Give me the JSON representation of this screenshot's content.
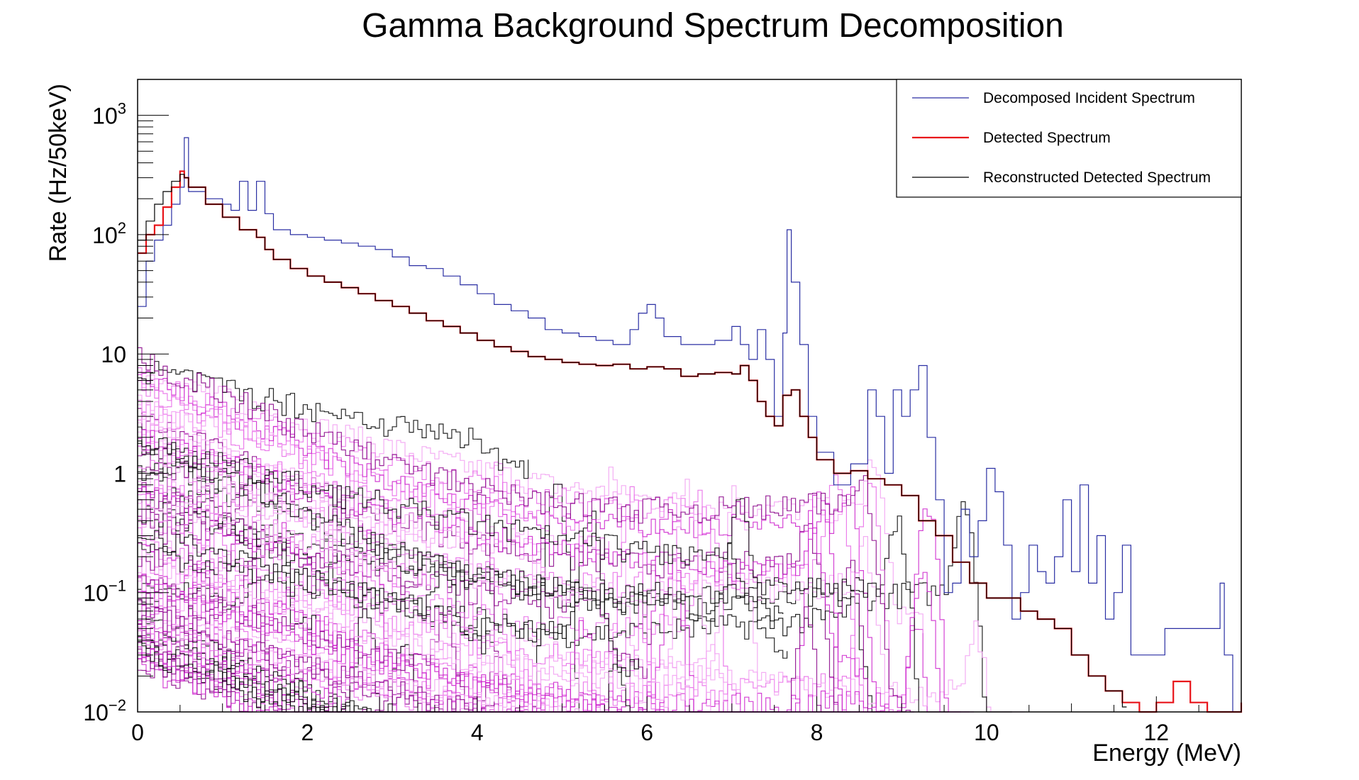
{
  "chart_data": {
    "type": "line",
    "title": "Gamma Background Spectrum Decomposition",
    "xlabel": "Energy (MeV)",
    "ylabel": "Rate (Hz/50keV)",
    "xlim": [
      0,
      13
    ],
    "ylim": [
      0.01,
      2000
    ],
    "yscale": "log",
    "grid": false,
    "legend_position": "top-right",
    "x_ticks": [
      {
        "value": 0,
        "label": "0"
      },
      {
        "value": 2,
        "label": "2"
      },
      {
        "value": 4,
        "label": "4"
      },
      {
        "value": 6,
        "label": "6"
      },
      {
        "value": 8,
        "label": "8"
      },
      {
        "value": 10,
        "label": "10"
      },
      {
        "value": 12,
        "label": "12"
      }
    ],
    "y_ticks": [
      {
        "value": 0.01,
        "base": "10",
        "exp": "−2",
        "label": ""
      },
      {
        "value": 0.1,
        "base": "10",
        "exp": "−1",
        "label": ""
      },
      {
        "value": 1,
        "base": "",
        "exp": "",
        "label": "1"
      },
      {
        "value": 10,
        "base": "",
        "exp": "",
        "label": "10"
      },
      {
        "value": 100,
        "base": "10",
        "exp": "2",
        "label": ""
      },
      {
        "value": 1000,
        "base": "10",
        "exp": "3",
        "label": ""
      }
    ],
    "series": [
      {
        "name": "Decomposed Incident Spectrum",
        "color": "#2a2fa3",
        "points": [
          [
            0.0,
            25
          ],
          [
            0.1,
            60
          ],
          [
            0.2,
            90
          ],
          [
            0.3,
            120
          ],
          [
            0.4,
            180
          ],
          [
            0.5,
            250
          ],
          [
            0.55,
            650
          ],
          [
            0.6,
            230
          ],
          [
            0.8,
            200
          ],
          [
            1.0,
            180
          ],
          [
            1.1,
            160
          ],
          [
            1.2,
            280
          ],
          [
            1.3,
            160
          ],
          [
            1.4,
            280
          ],
          [
            1.5,
            150
          ],
          [
            1.6,
            110
          ],
          [
            1.8,
            100
          ],
          [
            2.0,
            95
          ],
          [
            2.2,
            90
          ],
          [
            2.4,
            85
          ],
          [
            2.6,
            80
          ],
          [
            2.8,
            75
          ],
          [
            3.0,
            65
          ],
          [
            3.2,
            55
          ],
          [
            3.4,
            52
          ],
          [
            3.6,
            45
          ],
          [
            3.8,
            38
          ],
          [
            4.0,
            32
          ],
          [
            4.2,
            26
          ],
          [
            4.4,
            23
          ],
          [
            4.6,
            20
          ],
          [
            4.8,
            16
          ],
          [
            5.0,
            15
          ],
          [
            5.2,
            14
          ],
          [
            5.4,
            13
          ],
          [
            5.6,
            12
          ],
          [
            5.8,
            16
          ],
          [
            5.9,
            22
          ],
          [
            6.0,
            26
          ],
          [
            6.1,
            20
          ],
          [
            6.2,
            14
          ],
          [
            6.4,
            12
          ],
          [
            6.6,
            12
          ],
          [
            6.8,
            13
          ],
          [
            7.0,
            17
          ],
          [
            7.1,
            12
          ],
          [
            7.2,
            9
          ],
          [
            7.3,
            16
          ],
          [
            7.4,
            9
          ],
          [
            7.5,
            3
          ],
          [
            7.6,
            15
          ],
          [
            7.65,
            110
          ],
          [
            7.7,
            40
          ],
          [
            7.8,
            12
          ],
          [
            7.9,
            3
          ],
          [
            8.0,
            1.5
          ],
          [
            8.2,
            0.8
          ],
          [
            8.4,
            1.2
          ],
          [
            8.6,
            5
          ],
          [
            8.7,
            3
          ],
          [
            8.8,
            1
          ],
          [
            8.9,
            5
          ],
          [
            9.0,
            3
          ],
          [
            9.1,
            5
          ],
          [
            9.2,
            8
          ],
          [
            9.3,
            2
          ],
          [
            9.4,
            0.6
          ],
          [
            9.5,
            0.1
          ],
          [
            9.6,
            0.12
          ],
          [
            9.7,
            0.5
          ],
          [
            9.8,
            0.2
          ],
          [
            9.9,
            0.4
          ],
          [
            10.0,
            1.1
          ],
          [
            10.1,
            0.7
          ],
          [
            10.2,
            0.25
          ],
          [
            10.3,
            0.06
          ],
          [
            10.4,
            0.1
          ],
          [
            10.5,
            0.25
          ],
          [
            10.6,
            0.15
          ],
          [
            10.7,
            0.12
          ],
          [
            10.8,
            0.2
          ],
          [
            10.9,
            0.6
          ],
          [
            11.0,
            0.15
          ],
          [
            11.1,
            0.8
          ],
          [
            11.2,
            0.12
          ],
          [
            11.3,
            0.3
          ],
          [
            11.4,
            0.06
          ],
          [
            11.5,
            0.1
          ],
          [
            11.6,
            0.25
          ],
          [
            11.7,
            0.03
          ],
          [
            12.1,
            0.05
          ],
          [
            12.4,
            0.05
          ],
          [
            12.6,
            0.05
          ],
          [
            12.75,
            0.12
          ],
          [
            12.8,
            0.03
          ],
          [
            12.9,
            0.01
          ]
        ]
      },
      {
        "name": "Detected Spectrum",
        "color": "#e8141a",
        "points": [
          [
            0.0,
            70
          ],
          [
            0.1,
            100
          ],
          [
            0.2,
            120
          ],
          [
            0.3,
            170
          ],
          [
            0.4,
            250
          ],
          [
            0.5,
            340
          ],
          [
            0.55,
            300
          ],
          [
            0.6,
            250
          ],
          [
            0.8,
            180
          ],
          [
            1.0,
            140
          ],
          [
            1.2,
            110
          ],
          [
            1.4,
            95
          ],
          [
            1.5,
            75
          ],
          [
            1.6,
            62
          ],
          [
            1.8,
            52
          ],
          [
            2.0,
            45
          ],
          [
            2.2,
            40
          ],
          [
            2.4,
            36
          ],
          [
            2.6,
            32
          ],
          [
            2.8,
            28
          ],
          [
            3.0,
            25
          ],
          [
            3.2,
            22
          ],
          [
            3.4,
            19
          ],
          [
            3.6,
            17
          ],
          [
            3.8,
            15
          ],
          [
            4.0,
            13
          ],
          [
            4.2,
            11.5
          ],
          [
            4.4,
            10.5
          ],
          [
            4.6,
            9.5
          ],
          [
            4.8,
            9
          ],
          [
            5.0,
            8.5
          ],
          [
            5.2,
            8.2
          ],
          [
            5.4,
            8.0
          ],
          [
            5.6,
            8.2
          ],
          [
            5.8,
            7.5
          ],
          [
            6.0,
            7.8
          ],
          [
            6.2,
            7.5
          ],
          [
            6.4,
            6.5
          ],
          [
            6.6,
            6.8
          ],
          [
            6.8,
            7.0
          ],
          [
            7.0,
            6.8
          ],
          [
            7.1,
            8
          ],
          [
            7.2,
            6
          ],
          [
            7.3,
            4
          ],
          [
            7.4,
            3
          ],
          [
            7.5,
            2.5
          ],
          [
            7.6,
            4.5
          ],
          [
            7.7,
            5
          ],
          [
            7.8,
            3
          ],
          [
            7.9,
            2
          ],
          [
            8.0,
            1.3
          ],
          [
            8.2,
            1.0
          ],
          [
            8.4,
            1.05
          ],
          [
            8.6,
            0.9
          ],
          [
            8.8,
            0.8
          ],
          [
            9.0,
            0.65
          ],
          [
            9.2,
            0.4
          ],
          [
            9.4,
            0.3
          ],
          [
            9.6,
            0.18
          ],
          [
            9.8,
            0.12
          ],
          [
            10.0,
            0.09
          ],
          [
            10.2,
            0.09
          ],
          [
            10.4,
            0.07
          ],
          [
            10.6,
            0.06
          ],
          [
            10.8,
            0.05
          ],
          [
            11.0,
            0.03
          ],
          [
            11.2,
            0.02
          ],
          [
            11.4,
            0.015
          ],
          [
            11.6,
            0.012
          ],
          [
            11.8,
            0.01
          ],
          [
            12.0,
            0.012
          ],
          [
            12.2,
            0.018
          ],
          [
            12.4,
            0.012
          ],
          [
            12.6,
            0.01
          ],
          [
            12.8,
            0.01
          ],
          [
            13.0,
            0.012
          ]
        ]
      },
      {
        "name": "Reconstructed Detected Spectrum",
        "color": "#000000",
        "points": [
          [
            0.0,
            90
          ],
          [
            0.1,
            130
          ],
          [
            0.2,
            180
          ],
          [
            0.3,
            230
          ],
          [
            0.4,
            280
          ],
          [
            0.5,
            320
          ],
          [
            0.55,
            300
          ],
          [
            0.6,
            250
          ],
          [
            0.8,
            180
          ],
          [
            1.0,
            140
          ],
          [
            1.2,
            110
          ],
          [
            1.4,
            95
          ],
          [
            1.5,
            75
          ],
          [
            1.6,
            62
          ],
          [
            1.8,
            52
          ],
          [
            2.0,
            45
          ],
          [
            2.2,
            40
          ],
          [
            2.4,
            36
          ],
          [
            2.6,
            32
          ],
          [
            2.8,
            28
          ],
          [
            3.0,
            25
          ],
          [
            3.2,
            22
          ],
          [
            3.4,
            19
          ],
          [
            3.6,
            17
          ],
          [
            3.8,
            15
          ],
          [
            4.0,
            13
          ],
          [
            4.2,
            11.5
          ],
          [
            4.4,
            10.5
          ],
          [
            4.6,
            9.5
          ],
          [
            4.8,
            9
          ],
          [
            5.0,
            8.5
          ],
          [
            5.2,
            8.2
          ],
          [
            5.4,
            8.0
          ],
          [
            5.6,
            8.2
          ],
          [
            5.8,
            7.5
          ],
          [
            6.0,
            7.8
          ],
          [
            6.2,
            7.5
          ],
          [
            6.4,
            6.5
          ],
          [
            6.6,
            6.8
          ],
          [
            6.8,
            7.0
          ],
          [
            7.0,
            6.8
          ],
          [
            7.1,
            8
          ],
          [
            7.2,
            6
          ],
          [
            7.3,
            4
          ],
          [
            7.4,
            3
          ],
          [
            7.5,
            2.5
          ],
          [
            7.6,
            4.5
          ],
          [
            7.7,
            5
          ],
          [
            7.8,
            3
          ],
          [
            7.9,
            2
          ],
          [
            8.0,
            1.3
          ],
          [
            8.2,
            1.0
          ],
          [
            8.4,
            1.05
          ],
          [
            8.6,
            0.9
          ],
          [
            8.8,
            0.8
          ],
          [
            9.0,
            0.65
          ],
          [
            9.2,
            0.4
          ],
          [
            9.4,
            0.3
          ],
          [
            9.6,
            0.18
          ],
          [
            9.8,
            0.12
          ],
          [
            10.0,
            0.09
          ],
          [
            10.2,
            0.09
          ],
          [
            10.4,
            0.07
          ],
          [
            10.6,
            0.06
          ],
          [
            10.8,
            0.05
          ],
          [
            11.0,
            0.03
          ],
          [
            11.2,
            0.02
          ],
          [
            11.4,
            0.015
          ],
          [
            11.6,
            0.011
          ]
        ]
      }
    ],
    "component_colors": [
      "#cc22cc",
      "#e86ae8",
      "#f2a0f2",
      "#000000",
      "#880088"
    ],
    "frame_color": "#000000",
    "background_color": "#ffffff"
  }
}
